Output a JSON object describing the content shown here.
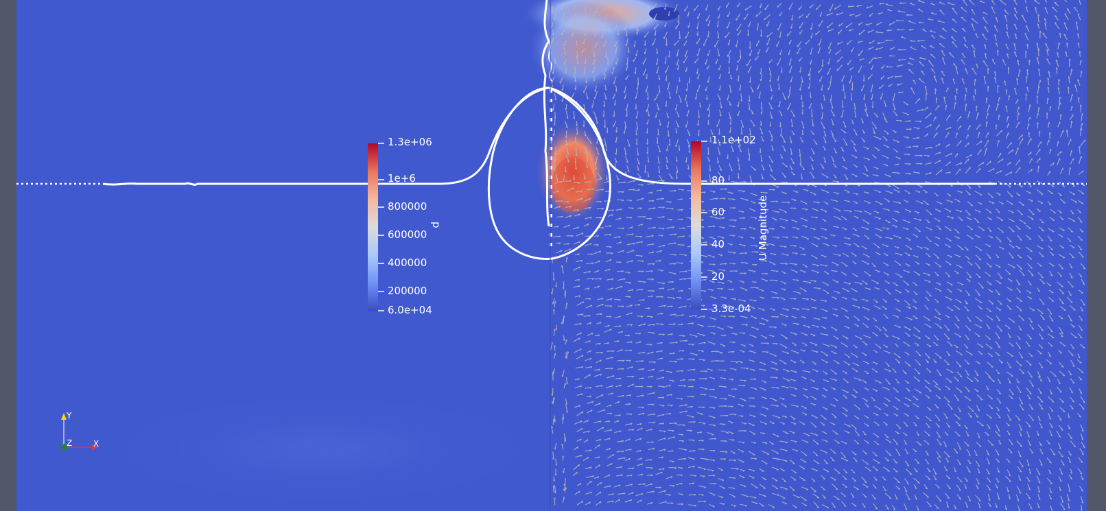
{
  "viewer": {
    "scalar_bar_p": {
      "title": "p",
      "colormap": [
        "#3b4cc0",
        "#6f92f3",
        "#aac7fd",
        "#dddcdc",
        "#f6b89c",
        "#e9785d",
        "#b40426"
      ],
      "labels": [
        "1.3e+06",
        "1e+6",
        "800000",
        "600000",
        "400000",
        "200000",
        "6.0e+04"
      ]
    },
    "scalar_bar_u": {
      "title": "U Magnitude",
      "colormap": [
        "#3b4cc0",
        "#6f92f3",
        "#aac7fd",
        "#dddcdc",
        "#f6b89c",
        "#e9785d",
        "#b40426"
      ],
      "labels": [
        "1.1e+02",
        "80",
        "60",
        "40",
        "20",
        "3.3e-04"
      ]
    },
    "orientation_axes": {
      "x": "X",
      "y": "Y",
      "z": "Z"
    },
    "colors": {
      "frame": "#525868",
      "field_background": "#4159cf",
      "glyph": "#b4b6bd",
      "contour": "#ffffff"
    }
  }
}
